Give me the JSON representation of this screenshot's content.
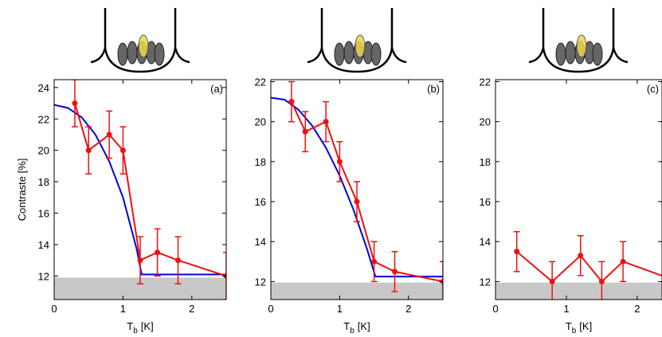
{
  "chart_data": [
    {
      "type": "line",
      "panel_label": "(a)",
      "ylabel": "Contraste [%]",
      "xlabel": {
        "main": "T",
        "sub": "b",
        "unit": "[K]"
      },
      "xlim": [
        0,
        2.5
      ],
      "ylim": [
        10.5,
        24.5
      ],
      "xticks": [
        0,
        1,
        2
      ],
      "yticks": [
        12,
        14,
        16,
        18,
        20,
        22,
        24
      ],
      "noise_floor": 11.9,
      "noise_color": "#c8c8c8",
      "fit": {
        "color": "#0000dd",
        "x": [
          0,
          0.2,
          0.4,
          0.6,
          0.8,
          1.0,
          1.2,
          1.27,
          2.5
        ],
        "values": [
          22.9,
          22.7,
          22.1,
          21,
          19.3,
          17,
          13.7,
          12.1,
          12.1
        ]
      },
      "measurement": {
        "color": "#ee1111",
        "x": [
          0.3,
          0.5,
          0.8,
          1.0,
          1.25,
          1.5,
          1.8,
          2.5
        ],
        "values": [
          23,
          20,
          21,
          20,
          13,
          13.5,
          13,
          12
        ],
        "errors": [
          1.5,
          1.5,
          1.5,
          1.5,
          1.5,
          1.5,
          1.5,
          1.5
        ]
      }
    },
    {
      "type": "line",
      "panel_label": "(b)",
      "xlabel": {
        "main": "T",
        "sub": "b",
        "unit": "[K]"
      },
      "xlim": [
        0,
        2.5
      ],
      "ylim": [
        11.1,
        22.1
      ],
      "xticks": [
        0,
        1,
        2
      ],
      "yticks": [
        12,
        14,
        16,
        18,
        20,
        22
      ],
      "noise_floor": 11.95,
      "noise_color": "#c8c8c8",
      "fit": {
        "color": "#0000dd",
        "x": [
          0,
          0.2,
          0.4,
          0.6,
          0.8,
          1.0,
          1.2,
          1.4,
          1.52,
          2.5
        ],
        "values": [
          21.2,
          21.1,
          20.6,
          19.8,
          18.7,
          17.3,
          15.6,
          13.6,
          12.25,
          12.25
        ]
      },
      "measurement": {
        "color": "#ee1111",
        "x": [
          0.3,
          0.5,
          0.8,
          1.0,
          1.25,
          1.5,
          1.8,
          2.5
        ],
        "values": [
          21,
          19.5,
          20,
          18,
          16,
          13,
          12.5,
          12
        ],
        "errors": [
          1,
          1,
          1,
          1,
          1,
          1,
          1,
          1
        ]
      }
    },
    {
      "type": "line",
      "panel_label": "(c)",
      "xlabel": {
        "main": "T",
        "sub": "b",
        "unit": "[K]"
      },
      "xlim": [
        0,
        2.35
      ],
      "ylim": [
        11.1,
        22.1
      ],
      "xticks": [
        0,
        1,
        2
      ],
      "yticks": [
        12,
        14,
        16,
        18,
        20,
        22
      ],
      "noise_floor": 11.95,
      "noise_color": "#c8c8c8",
      "measurement": {
        "color": "#ee1111",
        "x": [
          0.3,
          0.8,
          1.2,
          1.5,
          1.8,
          2.5
        ],
        "values": [
          13.5,
          12,
          13.3,
          12,
          13,
          12.1
        ],
        "errors": [
          1,
          1,
          1,
          1,
          1,
          1
        ]
      }
    }
  ]
}
